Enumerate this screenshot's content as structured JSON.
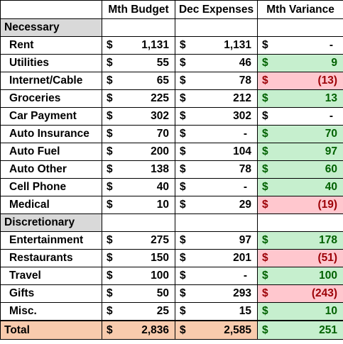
{
  "headers": {
    "budget": "Mth Budget",
    "expenses": "Dec Expenses",
    "variance": "Mth Variance"
  },
  "currency_symbol": "$",
  "sections": [
    {
      "title": "Necessary",
      "rows": [
        {
          "label": "Rent",
          "budget": "1,131",
          "expenses": "1,131",
          "variance": "-",
          "status": "neutral"
        },
        {
          "label": "Utilities",
          "budget": "55",
          "expenses": "46",
          "variance": "9",
          "status": "positive"
        },
        {
          "label": "Internet/Cable",
          "budget": "65",
          "expenses": "78",
          "variance": "(13)",
          "status": "negative"
        },
        {
          "label": "Groceries",
          "budget": "225",
          "expenses": "212",
          "variance": "13",
          "status": "positive"
        },
        {
          "label": "Car Payment",
          "budget": "302",
          "expenses": "302",
          "variance": "-",
          "status": "neutral"
        },
        {
          "label": "Auto Insurance",
          "budget": "70",
          "expenses": "-",
          "variance": "70",
          "status": "positive"
        },
        {
          "label": "Auto Fuel",
          "budget": "200",
          "expenses": "104",
          "variance": "97",
          "status": "positive"
        },
        {
          "label": "Auto Other",
          "budget": "138",
          "expenses": "78",
          "variance": "60",
          "status": "positive"
        },
        {
          "label": "Cell Phone",
          "budget": "40",
          "expenses": "-",
          "variance": "40",
          "status": "positive"
        },
        {
          "label": "Medical",
          "budget": "10",
          "expenses": "29",
          "variance": "(19)",
          "status": "negative"
        }
      ]
    },
    {
      "title": "Discretionary",
      "rows": [
        {
          "label": "Entertainment",
          "budget": "275",
          "expenses": "97",
          "variance": "178",
          "status": "positive"
        },
        {
          "label": "Restaurants",
          "budget": "150",
          "expenses": "201",
          "variance": "(51)",
          "status": "negative"
        },
        {
          "label": "Travel",
          "budget": "100",
          "expenses": "-",
          "variance": "100",
          "status": "positive"
        },
        {
          "label": "Gifts",
          "budget": "50",
          "expenses": "293",
          "variance": "(243)",
          "status": "negative"
        },
        {
          "label": "Misc.",
          "budget": "25",
          "expenses": "15",
          "variance": "10",
          "status": "positive"
        }
      ]
    }
  ],
  "total": {
    "label": "Total",
    "budget": "2,836",
    "expenses": "2,585",
    "variance": "251",
    "status": "positive"
  },
  "colors": {
    "section_fill": "#d9d9d9",
    "positive_fill": "#c6efce",
    "positive_text": "#006100",
    "negative_fill": "#ffc7ce",
    "negative_text": "#9c0006",
    "total_fill": "#f8cbad"
  }
}
